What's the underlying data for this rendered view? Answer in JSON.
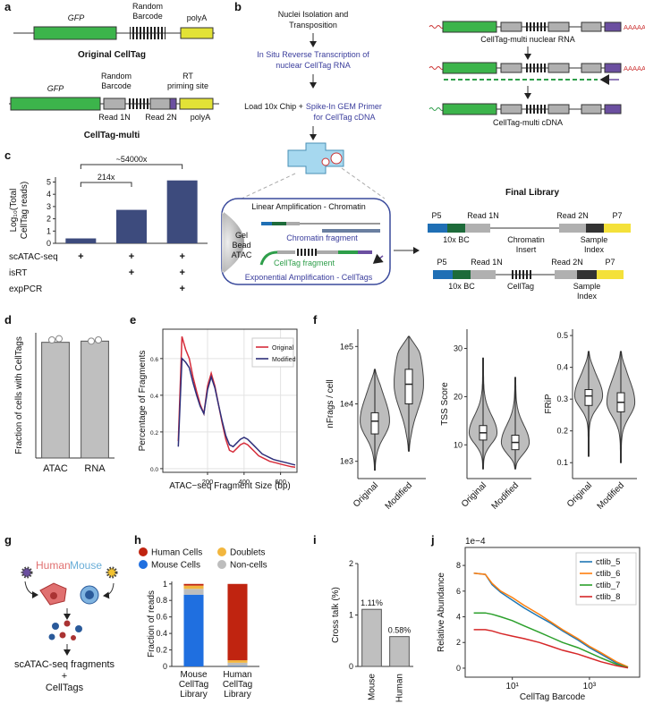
{
  "panel_labels": [
    "a",
    "b",
    "c",
    "d",
    "e",
    "f",
    "g",
    "h",
    "i",
    "j"
  ],
  "panel_a": {
    "original": {
      "gfp": "GFP",
      "barcode": [
        "Random",
        "Barcode"
      ],
      "polya": "polyA",
      "title": "Original CellTag"
    },
    "multi": {
      "gfp": "GFP",
      "barcode": [
        "Random",
        "Barcode"
      ],
      "rt": [
        "RT",
        "priming site"
      ],
      "read1": "Read 1N",
      "read2": "Read 2N",
      "polya": "polyA",
      "title": "CellTag-multi"
    }
  },
  "panel_b": {
    "steps": {
      "isolation": [
        "Nuclei Isolation and",
        "Transposition"
      ],
      "rt": [
        "In Situ Reverse Transcription of",
        "nuclear CellTag RNA"
      ],
      "load": "Load 10x Chip +",
      "spike_in": "Spike-In GEM Primer",
      "cdna": "for CellTag cDNA"
    },
    "rna": {
      "nuclear": "CellTag-multi nuclear RNA",
      "polya_1": "AAAAA",
      "polya_2": "AAAAA",
      "cdna": "CellTag-multi cDNA"
    },
    "gem": {
      "linear": "Linear Amplification - Chromatin",
      "bead": [
        "Gel",
        "Bead",
        "ATAC"
      ],
      "chromatin": "Chromatin fragment",
      "celltag": "CellTag fragment",
      "exponential": "Exponential Amplification - CellTags"
    },
    "library": {
      "title": "Final Library",
      "chromatin": {
        "p5": "P5",
        "read1": "Read 1N",
        "read2": "Read 2N",
        "p7": "P7",
        "bc": "10x BC",
        "insert": [
          "Chromatin",
          "Insert"
        ],
        "index": [
          "Sample",
          "Index"
        ]
      },
      "celltag": {
        "p5": "P5",
        "read1": "Read 1N",
        "read2": "Read 2N",
        "p7": "P7",
        "bc": "10x BC",
        "insert": "CellTag",
        "index": [
          "Sample",
          "Index"
        ]
      }
    }
  },
  "panel_g": {
    "human": "Human",
    "mouse": "Mouse",
    "result": [
      "scATAC-seq fragments",
      "+",
      "CellTags"
    ]
  },
  "chart_data": [
    {
      "type": "bar",
      "ylabel": [
        "Log₁₀(Total",
        "CellTag reads)"
      ],
      "values": [
        0.4,
        2.73,
        5.13
      ],
      "color": "#3d4b7d",
      "ylim": [
        0,
        5.4
      ],
      "yticks": [
        0,
        1,
        2,
        3,
        4,
        5
      ],
      "annotations": [
        "214x",
        "~54000x"
      ],
      "conditions": [
        {
          "name": "scATAC-seq",
          "marks": [
            "+",
            "+",
            "+"
          ]
        },
        {
          "name": "isRT",
          "marks": [
            null,
            "+",
            "+"
          ]
        },
        {
          "name": "expPCR",
          "marks": [
            null,
            null,
            "+"
          ]
        }
      ]
    },
    {
      "type": "bar",
      "ylabel": "Fraction of cells with CellTags",
      "categories": [
        "ATAC",
        "RNA"
      ],
      "values": [
        0.97,
        0.98
      ],
      "points": [
        [
          0.99,
          1.0
        ],
        [
          0.98,
          0.99
        ]
      ],
      "color": "#bfbfbf",
      "ylim": [
        0,
        1.05
      ]
    },
    {
      "type": "line",
      "xlabel": "ATAC−seq Fragment Size (bp)",
      "ylabel": "Percentage of Fragments",
      "grid": true,
      "x": [
        40,
        60,
        80,
        100,
        120,
        140,
        160,
        180,
        200,
        220,
        240,
        260,
        280,
        300,
        320,
        340,
        360,
        380,
        400,
        420,
        440,
        460,
        480,
        500,
        520,
        540,
        560,
        580,
        600,
        620,
        640,
        660,
        680
      ],
      "series": [
        {
          "name": "Original",
          "color": "#d62c3a",
          "values": [
            0.15,
            0.72,
            0.65,
            0.6,
            0.5,
            0.42,
            0.35,
            0.3,
            0.45,
            0.52,
            0.45,
            0.35,
            0.25,
            0.16,
            0.1,
            0.09,
            0.11,
            0.13,
            0.14,
            0.13,
            0.11,
            0.09,
            0.07,
            0.06,
            0.05,
            0.04,
            0.035,
            0.03,
            0.025,
            0.02,
            0.015,
            0.01,
            0.008
          ]
        },
        {
          "name": "Modified",
          "color": "#2e2f7a",
          "values": [
            0.12,
            0.6,
            0.58,
            0.55,
            0.47,
            0.4,
            0.34,
            0.3,
            0.43,
            0.5,
            0.44,
            0.35,
            0.26,
            0.18,
            0.13,
            0.12,
            0.14,
            0.16,
            0.17,
            0.16,
            0.14,
            0.12,
            0.1,
            0.08,
            0.07,
            0.06,
            0.05,
            0.045,
            0.04,
            0.035,
            0.03,
            0.025,
            0.02
          ]
        }
      ],
      "xlim": [
        -45,
        690
      ],
      "xticks": [
        200,
        400,
        600
      ],
      "ylim": [
        -0.02,
        0.76
      ],
      "yticks": [
        {
          "value": 0,
          "label": "0.0"
        },
        0.2,
        0.4,
        0.6
      ]
    },
    {
      "type": "violin",
      "ylabel": "nFrags / cell",
      "log_y": true,
      "categories": [
        "Original",
        "Modified"
      ],
      "color": "#bdbdbd",
      "stats": [
        {
          "min": 700,
          "q1": 3000,
          "median": 5000,
          "q3": 7000,
          "max": 40000
        },
        {
          "min": 1500,
          "q1": 10000,
          "median": 22000,
          "q3": 40000,
          "max": 150000
        }
      ],
      "ylim": [
        500,
        200000
      ],
      "yticks": [
        {
          "value": 1000,
          "label": "1e3"
        },
        {
          "value": 10000,
          "label": "1e4"
        },
        {
          "value": 100000,
          "label": "1e5"
        }
      ]
    },
    {
      "type": "violin",
      "ylabel": "TSS Score",
      "categories": [
        "Original",
        "Modified"
      ],
      "color": "#bdbdbd",
      "stats": [
        {
          "min": 5,
          "q1": 11,
          "median": 12.5,
          "q3": 14,
          "max": 28
        },
        {
          "min": 5,
          "q1": 9,
          "median": 10.5,
          "q3": 12,
          "max": 24
        }
      ],
      "ylim": [
        3,
        34
      ],
      "yticks": [
        10,
        20,
        30
      ]
    },
    {
      "type": "violin",
      "ylabel": "FRiP",
      "categories": [
        "Original",
        "Modified"
      ],
      "color": "#bdbdbd",
      "stats": [
        {
          "min": 0.12,
          "q1": 0.28,
          "median": 0.31,
          "q3": 0.33,
          "max": 0.45
        },
        {
          "min": 0.1,
          "q1": 0.26,
          "median": 0.29,
          "q3": 0.32,
          "max": 0.45
        }
      ],
      "ylim": [
        0.05,
        0.52
      ],
      "yticks": [
        0.1,
        0.2,
        0.3,
        0.4,
        0.5
      ]
    },
    {
      "type": "stacked_bar",
      "ylabel": "Fraction of reads",
      "categories": [
        [
          "Mouse",
          "CellTag",
          "Library"
        ],
        [
          "Human",
          "CellTag",
          "Library"
        ]
      ],
      "series": [
        {
          "name": "Mouse Cells",
          "color": "#1f6fe0",
          "values": [
            0.87,
            0.005
          ]
        },
        {
          "name": "Non-cells",
          "color": "#bdbdbd",
          "values": [
            0.07,
            0.04
          ]
        },
        {
          "name": "Doublets",
          "color": "#f2b63e",
          "values": [
            0.04,
            0.03
          ]
        },
        {
          "name": "Human Cells",
          "color": "#c02410",
          "values": [
            0.02,
            0.925
          ]
        }
      ],
      "ylim": [
        0,
        1.03
      ],
      "yticks": [
        0,
        0.2,
        0.4,
        0.6,
        0.8,
        1
      ]
    },
    {
      "type": "bar",
      "ylabel": "Cross talk (%)",
      "categories": [
        "Mouse",
        "Human"
      ],
      "values": [
        1.11,
        0.58
      ],
      "value_labels": [
        "1.11%",
        "0.58%"
      ],
      "color": "#bfbfbf",
      "ylim": [
        0,
        2
      ],
      "yticks": [
        0,
        1,
        2
      ]
    },
    {
      "type": "line",
      "xlabel": "CellTag Barcode",
      "ylabel": "Relative Abundance",
      "offset_label": "1e−4",
      "log_x": true,
      "legend": "upper right",
      "x": [
        1,
        2,
        3,
        5,
        10,
        20,
        50,
        100,
        200,
        500,
        1000,
        2000,
        5000,
        10000
      ],
      "series": [
        {
          "name": "ctlib_5",
          "color": "#1f77b4",
          "values": [
            7.4,
            7.3,
            6.5,
            5.9,
            5.3,
            4.7,
            4.0,
            3.5,
            2.9,
            2.2,
            1.6,
            1.1,
            0.4,
            0.05
          ]
        },
        {
          "name": "ctlib_6",
          "color": "#ff7f0e",
          "values": [
            7.4,
            7.3,
            6.6,
            6.0,
            5.5,
            4.9,
            4.2,
            3.6,
            3.0,
            2.3,
            1.7,
            1.2,
            0.5,
            0.1
          ]
        },
        {
          "name": "ctlib_7",
          "color": "#2ca02c",
          "values": [
            4.3,
            4.3,
            4.2,
            4.0,
            3.7,
            3.3,
            2.8,
            2.4,
            2.0,
            1.6,
            1.2,
            0.8,
            0.3,
            0.05
          ]
        },
        {
          "name": "ctlib_8",
          "color": "#d62728",
          "values": [
            3.0,
            3.0,
            2.9,
            2.7,
            2.5,
            2.3,
            2.0,
            1.7,
            1.4,
            1.1,
            0.8,
            0.5,
            0.2,
            0.02
          ]
        }
      ],
      "xlim": [
        0.6,
        20000
      ],
      "xticks": [
        {
          "value": 10,
          "label": "10¹"
        },
        {
          "value": 1000,
          "label": "10³"
        }
      ],
      "ylim": [
        -0.7,
        9.4
      ],
      "yticks": [
        0,
        2,
        4,
        6,
        8
      ]
    }
  ]
}
